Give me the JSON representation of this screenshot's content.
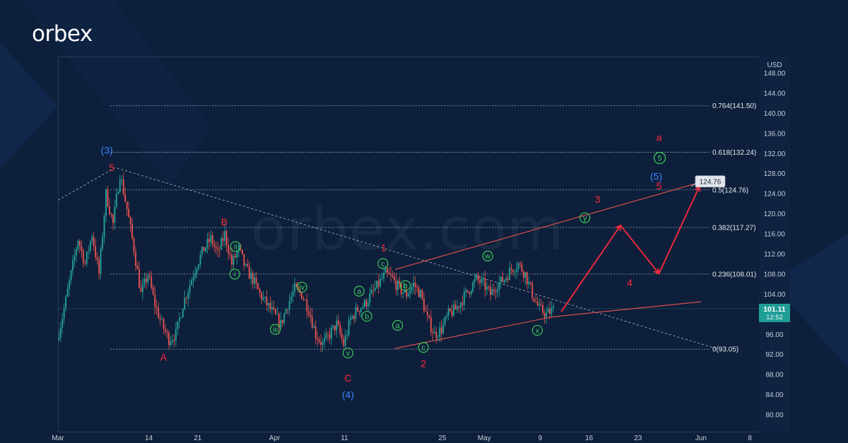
{
  "brand": {
    "logo_text": "orbex",
    "watermark_text": "orbex.com"
  },
  "colors": {
    "background": "#0d1f3a",
    "candle_up": "#26a69a",
    "candle_down": "#ef5350",
    "wave_red": "#ff2a3c",
    "wave_blue": "#3b82ff",
    "wave_green": "#3fc85a",
    "fib_line": "#c9d3e0",
    "price_tag": "#1e9e96"
  },
  "chart_data": {
    "type": "candlestick",
    "currency": "USD",
    "y_range": [
      76,
      151
    ],
    "y_ticks": [
      "148.00",
      "144.00",
      "140.00",
      "136.00",
      "132.00",
      "128.00",
      "124.00",
      "120.00",
      "116.00",
      "112.00",
      "108.00",
      "104.00",
      "100.00",
      "96.00",
      "92.00",
      "88.00",
      "84.00",
      "80.00"
    ],
    "x_ticks": [
      {
        "label": "Mar",
        "t": 0
      },
      {
        "label": "14",
        "t": 13
      },
      {
        "label": "21",
        "t": 20
      },
      {
        "label": "Apr",
        "t": 31
      },
      {
        "label": "11",
        "t": 41
      },
      {
        "label": "25",
        "t": 55
      },
      {
        "label": "May",
        "t": 61
      },
      {
        "label": "9",
        "t": 69
      },
      {
        "label": "16",
        "t": 76
      },
      {
        "label": "23",
        "t": 83
      },
      {
        "label": "Jun",
        "t": 92
      },
      {
        "label": "8",
        "t": 99
      }
    ],
    "x_range_days": [
      0,
      101
    ],
    "current_price": {
      "price": "101.11",
      "countdown": "12:52",
      "value": 101.11
    },
    "target_tag": {
      "label": "124.76",
      "value": 124.76
    },
    "fib_levels": [
      {
        "label": "0.764(141.50)",
        "value": 141.5,
        "t_start": 7.5
      },
      {
        "label": "0.618(132.24)",
        "value": 132.24,
        "t_start": 7.5
      },
      {
        "label": "0.5(124.76)",
        "value": 124.76,
        "t_start": 7.5
      },
      {
        "label": "0.382(117.27)",
        "value": 117.27,
        "t_start": 7.5
      },
      {
        "label": "0.236(108.01)",
        "value": 108.01,
        "t_start": 7.5
      },
      {
        "label": "0(93.05)",
        "value": 93.05,
        "t_start": 7.5
      }
    ],
    "price_path": [
      [
        0,
        95
      ],
      [
        1,
        101
      ],
      [
        2,
        108
      ],
      [
        3,
        115
      ],
      [
        4,
        110
      ],
      [
        5,
        116
      ],
      [
        6,
        108
      ],
      [
        7,
        124
      ],
      [
        8,
        118
      ],
      [
        9,
        128
      ],
      [
        10,
        121
      ],
      [
        11,
        113
      ],
      [
        12,
        104
      ],
      [
        13,
        108
      ],
      [
        14,
        102
      ],
      [
        15,
        98
      ],
      [
        16,
        95
      ],
      [
        17,
        96
      ],
      [
        18,
        102
      ],
      [
        19,
        106
      ],
      [
        20,
        110
      ],
      [
        21,
        113
      ],
      [
        22,
        115
      ],
      [
        23,
        112
      ],
      [
        24,
        116
      ],
      [
        25,
        110
      ],
      [
        26,
        113
      ],
      [
        27,
        109
      ],
      [
        28,
        107
      ],
      [
        29,
        104
      ],
      [
        30,
        102
      ],
      [
        31,
        100
      ],
      [
        32,
        98
      ],
      [
        33,
        102
      ],
      [
        34,
        105
      ],
      [
        35,
        104
      ],
      [
        36,
        101
      ],
      [
        37,
        96
      ],
      [
        38,
        94
      ],
      [
        39,
        96
      ],
      [
        40,
        98
      ],
      [
        41,
        94
      ],
      [
        42,
        99
      ],
      [
        43,
        101
      ],
      [
        44,
        102
      ],
      [
        45,
        104
      ],
      [
        46,
        106
      ],
      [
        47,
        108
      ],
      [
        48,
        107
      ],
      [
        49,
        105
      ],
      [
        50,
        104
      ],
      [
        51,
        106
      ],
      [
        52,
        104
      ],
      [
        53,
        99
      ],
      [
        54,
        96
      ],
      [
        55,
        97
      ],
      [
        56,
        100
      ],
      [
        57,
        101
      ],
      [
        58,
        103
      ],
      [
        59,
        105
      ],
      [
        60,
        107
      ],
      [
        61,
        106
      ],
      [
        62,
        104
      ],
      [
        63,
        106
      ],
      [
        64,
        107
      ],
      [
        65,
        109
      ],
      [
        66,
        110
      ],
      [
        67,
        108
      ],
      [
        68,
        104
      ],
      [
        69,
        101
      ],
      [
        70,
        100
      ],
      [
        71,
        101
      ]
    ],
    "trendlines": [
      {
        "name": "resistance-dotted",
        "style": "dotted",
        "points": [
          [
            0,
            122.7
          ],
          [
            8.2,
            129.2
          ],
          [
            94.5,
            93.05
          ]
        ]
      },
      {
        "name": "channel-upper",
        "style": "solid",
        "points": [
          [
            48.2,
            108.9
          ],
          [
            92.5,
            126.5
          ]
        ]
      },
      {
        "name": "channel-lower",
        "style": "solid",
        "points": [
          [
            48.2,
            93.2
          ],
          [
            70.8,
            99.5
          ],
          [
            92,
            102.5
          ]
        ]
      }
    ],
    "projection": [
      [
        72,
        100.5
      ],
      [
        80.5,
        117.7
      ],
      [
        86,
        108.1
      ],
      [
        91.8,
        125.5
      ]
    ],
    "wave_labels": [
      {
        "text": "(3)",
        "color": "blue",
        "t": 7,
        "v": 132.7
      },
      {
        "text": "5",
        "color": "red",
        "t": 7.7,
        "v": 129.2
      },
      {
        "text": "A",
        "color": "red",
        "t": 15.1,
        "v": 91.5
      },
      {
        "text": "B",
        "color": "red",
        "t": 23.8,
        "v": 118.4
      },
      {
        "text": "C",
        "color": "red",
        "t": 41.5,
        "v": 87.3
      },
      {
        "text": "(4)",
        "color": "blue",
        "t": 41.5,
        "v": 84.0
      },
      {
        "text": "1",
        "color": "red",
        "t": 46.6,
        "v": 113.3
      },
      {
        "text": "2",
        "color": "red",
        "t": 52.3,
        "v": 90.2
      },
      {
        "text": "3",
        "color": "red",
        "t": 77.2,
        "v": 122.9
      },
      {
        "text": "4",
        "color": "red",
        "t": 81.8,
        "v": 106.3
      },
      {
        "text": "a",
        "color": "red",
        "t": 86,
        "v": 135.2
      },
      {
        "text": "(5)",
        "color": "blue",
        "t": 85.6,
        "v": 127.5
      },
      {
        "text": "5",
        "color": "red",
        "t": 86,
        "v": 125.6
      },
      {
        "text": "ii",
        "color": "green",
        "circle": true,
        "t": 25.4,
        "v": 113.5
      },
      {
        "text": "i",
        "color": "green",
        "circle": true,
        "t": 25.3,
        "v": 108.0
      },
      {
        "text": "iv",
        "color": "green",
        "circle": true,
        "t": 34.9,
        "v": 105.4
      },
      {
        "text": "iii",
        "color": "green",
        "circle": true,
        "t": 31.1,
        "v": 97.0
      },
      {
        "text": "v",
        "color": "green",
        "circle": true,
        "t": 41.5,
        "v": 92.3
      },
      {
        "text": "a",
        "color": "green",
        "circle": true,
        "t": 43.1,
        "v": 104.6
      },
      {
        "text": "b",
        "color": "green",
        "circle": true,
        "t": 44.2,
        "v": 99.6
      },
      {
        "text": "c",
        "color": "green",
        "circle": true,
        "t": 46.5,
        "v": 110.1
      },
      {
        "text": "b",
        "color": "green",
        "circle": true,
        "t": 49.7,
        "v": 105.7
      },
      {
        "text": "a",
        "color": "green",
        "circle": true,
        "t": 48.6,
        "v": 97.8
      },
      {
        "text": "c",
        "color": "green",
        "circle": true,
        "t": 52.3,
        "v": 93.4
      },
      {
        "text": "w",
        "color": "green",
        "circle": true,
        "t": 61.5,
        "v": 111.6
      },
      {
        "text": "x",
        "color": "green",
        "circle": true,
        "t": 68.6,
        "v": 96.8
      },
      {
        "text": "y",
        "color": "green",
        "circle": true,
        "t": 75.4,
        "v": 119.2
      },
      {
        "text": "5",
        "color": "green",
        "circle": true,
        "big": true,
        "t": 86.1,
        "v": 131.1
      }
    ]
  }
}
